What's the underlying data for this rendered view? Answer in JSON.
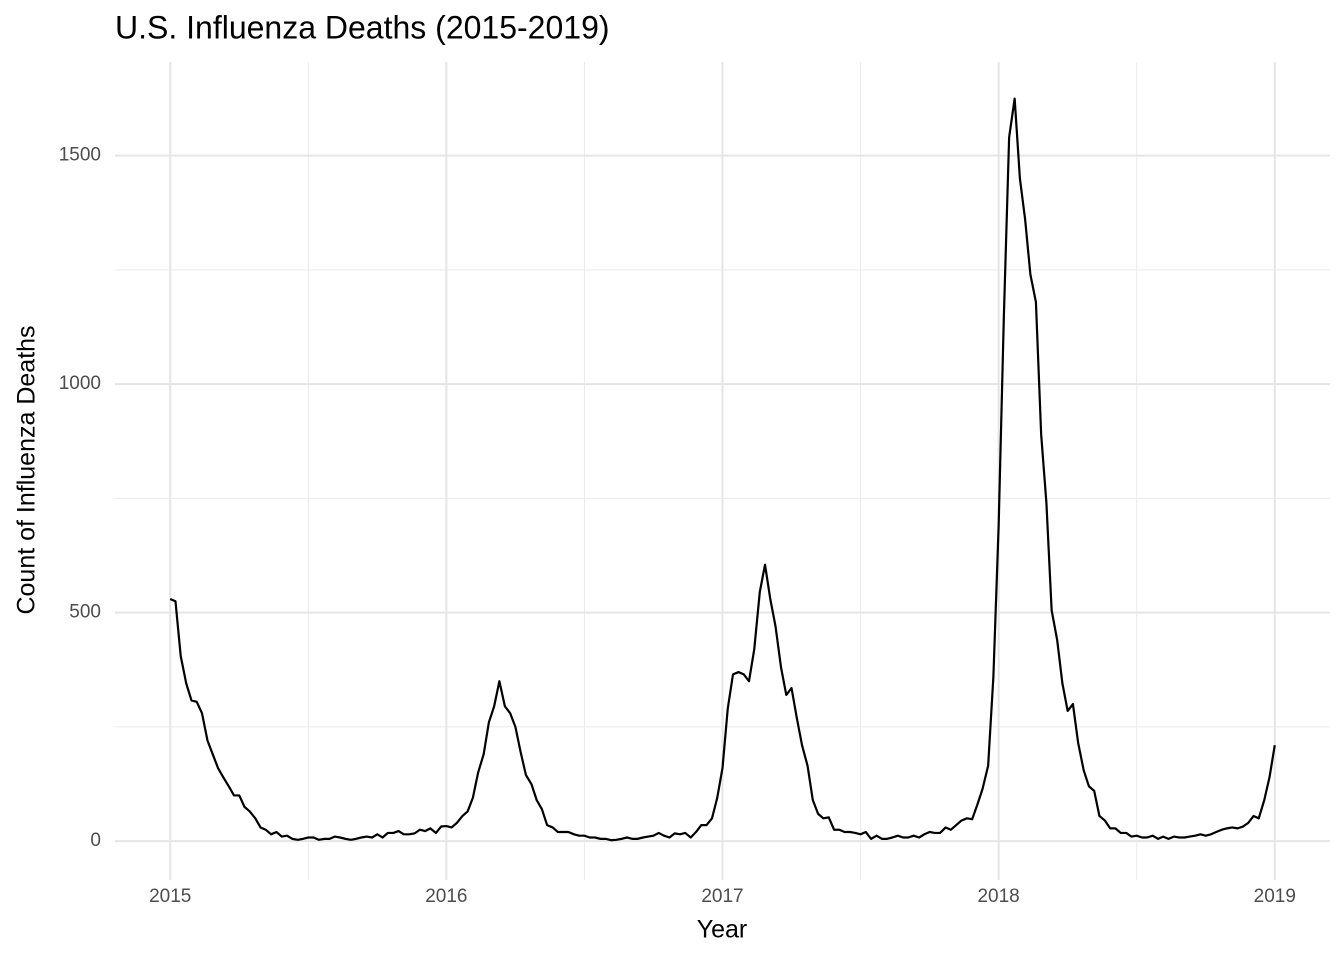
{
  "chart_data": {
    "type": "line",
    "title": "U.S. Influenza Deaths (2015-2019)",
    "x_label": "Year",
    "y_label": "Count of Influenza Deaths",
    "color": "#000000",
    "grid": true,
    "xlim": [
      2014.8,
      2019.2
    ],
    "xticks": [
      2015,
      2016,
      2017,
      2018,
      2019
    ],
    "ylim": [
      -85,
      1705
    ],
    "yticks": [
      0,
      500,
      1000,
      1500
    ],
    "x": [
      2015,
      2015.019,
      2015.038,
      2015.058,
      2015.077,
      2015.096,
      2015.115,
      2015.135,
      2015.154,
      2015.173,
      2015.192,
      2015.212,
      2015.231,
      2015.25,
      2015.269,
      2015.288,
      2015.308,
      2015.327,
      2015.346,
      2015.365,
      2015.385,
      2015.404,
      2015.423,
      2015.442,
      2015.462,
      2015.481,
      2015.5,
      2015.519,
      2015.538,
      2015.558,
      2015.577,
      2015.596,
      2015.615,
      2015.635,
      2015.654,
      2015.673,
      2015.692,
      2015.712,
      2015.731,
      2015.75,
      2015.769,
      2015.788,
      2015.808,
      2015.827,
      2015.846,
      2015.865,
      2015.885,
      2015.904,
      2015.923,
      2015.942,
      2015.962,
      2015.981,
      2016,
      2016.019,
      2016.038,
      2016.058,
      2016.077,
      2016.096,
      2016.115,
      2016.135,
      2016.154,
      2016.173,
      2016.192,
      2016.212,
      2016.231,
      2016.25,
      2016.269,
      2016.288,
      2016.308,
      2016.327,
      2016.346,
      2016.365,
      2016.385,
      2016.404,
      2016.423,
      2016.442,
      2016.462,
      2016.481,
      2016.5,
      2016.519,
      2016.538,
      2016.558,
      2016.577,
      2016.596,
      2016.615,
      2016.635,
      2016.654,
      2016.673,
      2016.692,
      2016.712,
      2016.731,
      2016.75,
      2016.769,
      2016.788,
      2016.808,
      2016.827,
      2016.846,
      2016.865,
      2016.885,
      2016.904,
      2016.923,
      2016.942,
      2016.962,
      2016.981,
      2017,
      2017.019,
      2017.038,
      2017.058,
      2017.077,
      2017.096,
      2017.115,
      2017.135,
      2017.154,
      2017.173,
      2017.192,
      2017.212,
      2017.231,
      2017.25,
      2017.269,
      2017.288,
      2017.308,
      2017.327,
      2017.346,
      2017.365,
      2017.385,
      2017.404,
      2017.423,
      2017.442,
      2017.462,
      2017.481,
      2017.5,
      2017.519,
      2017.538,
      2017.558,
      2017.577,
      2017.596,
      2017.615,
      2017.635,
      2017.654,
      2017.673,
      2017.692,
      2017.712,
      2017.731,
      2017.75,
      2017.769,
      2017.788,
      2017.808,
      2017.827,
      2017.846,
      2017.865,
      2017.885,
      2017.904,
      2017.923,
      2017.942,
      2017.962,
      2017.981,
      2018,
      2018.019,
      2018.038,
      2018.058,
      2018.077,
      2018.096,
      2018.115,
      2018.135,
      2018.154,
      2018.173,
      2018.192,
      2018.212,
      2018.231,
      2018.25,
      2018.269,
      2018.288,
      2018.308,
      2018.327,
      2018.346,
      2018.365,
      2018.385,
      2018.404,
      2018.423,
      2018.442,
      2018.462,
      2018.481,
      2018.5,
      2018.519,
      2018.538,
      2018.558,
      2018.577,
      2018.596,
      2018.615,
      2018.635,
      2018.654,
      2018.673,
      2018.692,
      2018.712,
      2018.731,
      2018.75,
      2018.769,
      2018.788,
      2018.808,
      2018.827,
      2018.846,
      2018.865,
      2018.885,
      2018.904,
      2018.923,
      2018.942,
      2018.962,
      2018.981,
      2019
    ],
    "values": [
      530,
      525,
      405,
      345,
      308,
      305,
      280,
      220,
      190,
      160,
      140,
      120,
      100,
      100,
      75,
      65,
      50,
      30,
      25,
      15,
      20,
      10,
      12,
      5,
      3,
      5,
      8,
      8,
      3,
      5,
      5,
      10,
      8,
      5,
      3,
      5,
      8,
      10,
      8,
      15,
      8,
      18,
      18,
      22,
      15,
      15,
      17,
      25,
      22,
      28,
      18,
      32,
      33,
      30,
      40,
      55,
      65,
      95,
      150,
      190,
      260,
      295,
      350,
      295,
      280,
      250,
      195,
      145,
      125,
      90,
      70,
      35,
      30,
      20,
      20,
      20,
      15,
      12,
      12,
      8,
      8,
      5,
      5,
      2,
      3,
      5,
      8,
      5,
      5,
      8,
      10,
      12,
      18,
      12,
      8,
      17,
      15,
      18,
      8,
      20,
      35,
      35,
      50,
      95,
      160,
      290,
      365,
      370,
      365,
      350,
      420,
      545,
      605,
      530,
      470,
      380,
      320,
      335,
      270,
      210,
      165,
      90,
      60,
      50,
      52,
      25,
      25,
      20,
      20,
      18,
      15,
      20,
      5,
      12,
      5,
      5,
      8,
      12,
      8,
      8,
      12,
      8,
      15,
      20,
      18,
      18,
      30,
      25,
      35,
      45,
      50,
      48,
      80,
      115,
      165,
      360,
      690,
      1150,
      1540,
      1625,
      1450,
      1360,
      1240,
      1180,
      890,
      740,
      505,
      440,
      345,
      285,
      300,
      215,
      155,
      120,
      110,
      55,
      45,
      28,
      28,
      18,
      18,
      10,
      12,
      8,
      8,
      12,
      5,
      10,
      5,
      10,
      8,
      8,
      10,
      12,
      15,
      12,
      15,
      20,
      25,
      28,
      30,
      28,
      32,
      40,
      55,
      50,
      90,
      140,
      210
    ]
  }
}
